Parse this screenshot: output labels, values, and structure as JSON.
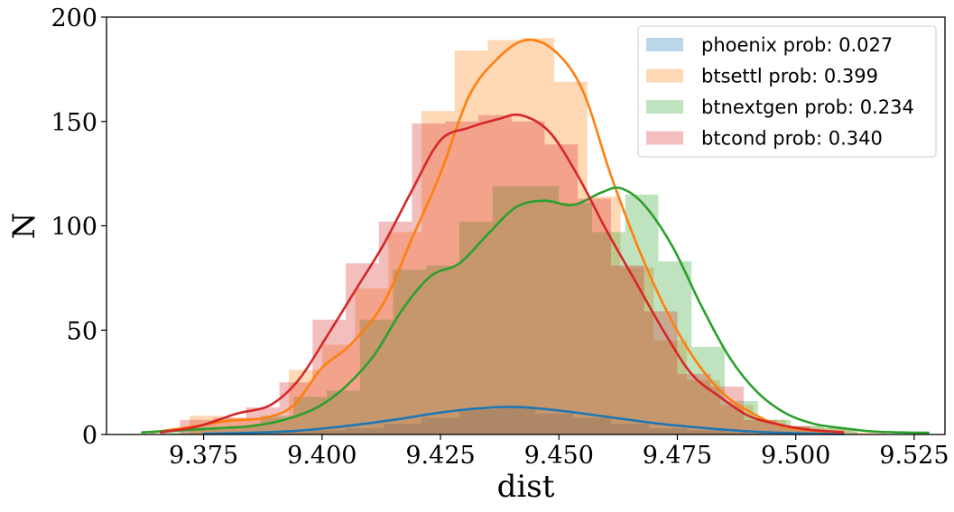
{
  "chart_data": {
    "type": "histogram",
    "xlabel": "dist",
    "ylabel": "N",
    "xlim": [
      9.3545,
      9.5315
    ],
    "ylim": [
      0,
      200
    ],
    "xticks": [
      9.375,
      9.4,
      9.425,
      9.45,
      9.475,
      9.5,
      9.525
    ],
    "xtick_labels": [
      "9.375",
      "9.400",
      "9.425",
      "9.450",
      "9.475",
      "9.500",
      "9.525"
    ],
    "yticks": [
      0,
      50,
      100,
      150,
      200
    ],
    "ytick_labels": [
      "0",
      "50",
      "100",
      "150",
      "200"
    ],
    "legend_position": "top-right",
    "grid": false,
    "series": [
      {
        "name": "phoenix prob: 0.027",
        "color": "#1f77b4",
        "bins": [
          [
            9.373,
            9.381,
            0
          ],
          [
            9.381,
            9.389,
            1
          ],
          [
            9.389,
            9.397,
            1
          ],
          [
            9.397,
            9.405,
            2
          ],
          [
            9.405,
            9.413,
            3
          ],
          [
            9.413,
            9.421,
            5
          ],
          [
            9.421,
            9.429,
            8
          ],
          [
            9.429,
            9.437,
            12
          ],
          [
            9.437,
            9.445,
            13
          ],
          [
            9.445,
            9.453,
            10
          ],
          [
            9.453,
            9.461,
            8
          ],
          [
            9.461,
            9.469,
            5
          ],
          [
            9.469,
            9.477,
            3
          ],
          [
            9.477,
            9.485,
            2
          ],
          [
            9.485,
            9.493,
            1
          ],
          [
            9.493,
            9.501,
            1
          ],
          [
            9.501,
            9.509,
            0
          ]
        ],
        "kde": [
          [
            9.375,
            0.3
          ],
          [
            9.385,
            0.8
          ],
          [
            9.395,
            1.8
          ],
          [
            9.405,
            4
          ],
          [
            9.415,
            7
          ],
          [
            9.425,
            10.5
          ],
          [
            9.433,
            12.5
          ],
          [
            9.441,
            13.2
          ],
          [
            9.45,
            11.5
          ],
          [
            9.46,
            8.5
          ],
          [
            9.47,
            5.5
          ],
          [
            9.48,
            3.2
          ],
          [
            9.49,
            1.5
          ],
          [
            9.5,
            0.6
          ],
          [
            9.51,
            0.2
          ]
        ]
      },
      {
        "name": "btsettl prob: 0.399",
        "color": "#ff7f0e",
        "bins": [
          [
            9.372,
            9.379,
            9
          ],
          [
            9.379,
            9.386,
            8
          ],
          [
            9.386,
            9.393,
            8
          ],
          [
            9.393,
            9.4,
            31
          ],
          [
            9.4,
            9.407,
            43
          ],
          [
            9.407,
            9.414,
            70
          ],
          [
            9.414,
            9.421,
            97
          ],
          [
            9.421,
            9.428,
            155
          ],
          [
            9.428,
            9.435,
            184
          ],
          [
            9.435,
            9.442,
            189
          ],
          [
            9.442,
            9.449,
            190
          ],
          [
            9.449,
            9.456,
            169
          ],
          [
            9.456,
            9.463,
            114
          ],
          [
            9.463,
            9.47,
            80
          ],
          [
            9.47,
            9.477,
            45
          ],
          [
            9.477,
            9.484,
            26
          ],
          [
            9.484,
            9.491,
            14
          ],
          [
            9.491,
            9.498,
            7
          ],
          [
            9.498,
            9.505,
            4
          ],
          [
            9.505,
            9.512,
            3
          ],
          [
            9.512,
            9.519,
            1
          ]
        ],
        "kde": [
          [
            9.364,
            1
          ],
          [
            9.372,
            3.5
          ],
          [
            9.38,
            6.5
          ],
          [
            9.388,
            8
          ],
          [
            9.394,
            14
          ],
          [
            9.4,
            32
          ],
          [
            9.406,
            43
          ],
          [
            9.413,
            63
          ],
          [
            9.419,
            94
          ],
          [
            9.425,
            125
          ],
          [
            9.431,
            162
          ],
          [
            9.437,
            180
          ],
          [
            9.443,
            189
          ],
          [
            9.449,
            184
          ],
          [
            9.455,
            165
          ],
          [
            9.461,
            124
          ],
          [
            9.467,
            88
          ],
          [
            9.473,
            58
          ],
          [
            9.479,
            35
          ],
          [
            9.485,
            19
          ],
          [
            9.491,
            10
          ],
          [
            9.497,
            4
          ],
          [
            9.503,
            2
          ],
          [
            9.51,
            1
          ]
        ]
      },
      {
        "name": "btnextgen prob: 0.234",
        "color": "#2ca02c",
        "bins": [
          [
            9.366,
            9.373,
            2
          ],
          [
            9.373,
            9.38,
            3
          ],
          [
            9.38,
            9.387,
            4
          ],
          [
            9.387,
            9.394,
            9
          ],
          [
            9.394,
            9.401,
            18
          ],
          [
            9.401,
            9.408,
            21
          ],
          [
            9.408,
            9.415,
            55
          ],
          [
            9.415,
            9.422,
            79
          ],
          [
            9.422,
            9.429,
            81
          ],
          [
            9.429,
            9.436,
            102
          ],
          [
            9.436,
            9.443,
            119
          ],
          [
            9.443,
            9.45,
            119
          ],
          [
            9.45,
            9.457,
            111
          ],
          [
            9.457,
            9.464,
            97
          ],
          [
            9.464,
            9.471,
            115
          ],
          [
            9.471,
            9.478,
            83
          ],
          [
            9.478,
            9.485,
            42
          ],
          [
            9.485,
            9.492,
            16
          ],
          [
            9.492,
            9.499,
            7
          ],
          [
            9.499,
            9.506,
            4
          ],
          [
            9.506,
            9.513,
            3
          ]
        ],
        "kde": [
          [
            9.362,
            1
          ],
          [
            9.37,
            2
          ],
          [
            9.378,
            3
          ],
          [
            9.385,
            4
          ],
          [
            9.392,
            7
          ],
          [
            9.399,
            13
          ],
          [
            9.405,
            23
          ],
          [
            9.411,
            38
          ],
          [
            9.417,
            60
          ],
          [
            9.423,
            76
          ],
          [
            9.429,
            82
          ],
          [
            9.435,
            96
          ],
          [
            9.441,
            109
          ],
          [
            9.447,
            112
          ],
          [
            9.453,
            110
          ],
          [
            9.459,
            116
          ],
          [
            9.463,
            118
          ],
          [
            9.468,
            110
          ],
          [
            9.474,
            90
          ],
          [
            9.48,
            62
          ],
          [
            9.486,
            37
          ],
          [
            9.492,
            20
          ],
          [
            9.498,
            10
          ],
          [
            9.504,
            5
          ],
          [
            9.51,
            3
          ],
          [
            9.516,
            1.5
          ],
          [
            9.522,
            1
          ],
          [
            9.528,
            0.8
          ]
        ]
      },
      {
        "name": "btcond prob: 0.340",
        "color": "#d62728",
        "bins": [
          [
            9.37,
            9.377,
            7
          ],
          [
            9.377,
            9.384,
            8
          ],
          [
            9.384,
            9.391,
            13
          ],
          [
            9.391,
            9.398,
            25
          ],
          [
            9.398,
            9.405,
            55
          ],
          [
            9.405,
            9.412,
            82
          ],
          [
            9.412,
            9.419,
            102
          ],
          [
            9.419,
            9.426,
            149
          ],
          [
            9.426,
            9.433,
            150
          ],
          [
            9.433,
            9.44,
            153
          ],
          [
            9.44,
            9.447,
            150
          ],
          [
            9.447,
            9.454,
            139
          ],
          [
            9.454,
            9.461,
            113
          ],
          [
            9.461,
            9.468,
            81
          ],
          [
            9.468,
            9.475,
            59
          ],
          [
            9.475,
            9.482,
            29
          ],
          [
            9.482,
            9.489,
            23
          ],
          [
            9.489,
            9.496,
            7
          ],
          [
            9.496,
            9.503,
            4
          ],
          [
            9.503,
            9.51,
            2
          ]
        ],
        "kde": [
          [
            9.366,
            1
          ],
          [
            9.374,
            4
          ],
          [
            9.382,
            10
          ],
          [
            9.389,
            14
          ],
          [
            9.395,
            26
          ],
          [
            9.401,
            47
          ],
          [
            9.407,
            69
          ],
          [
            9.413,
            91
          ],
          [
            9.419,
            117
          ],
          [
            9.425,
            141
          ],
          [
            9.431,
            147
          ],
          [
            9.437,
            151
          ],
          [
            9.442,
            153
          ],
          [
            9.448,
            145
          ],
          [
            9.454,
            124
          ],
          [
            9.46,
            98
          ],
          [
            9.466,
            74
          ],
          [
            9.472,
            50
          ],
          [
            9.478,
            29
          ],
          [
            9.484,
            18
          ],
          [
            9.49,
            9
          ],
          [
            9.496,
            5
          ],
          [
            9.502,
            2.5
          ],
          [
            9.51,
            1
          ]
        ]
      }
    ]
  }
}
